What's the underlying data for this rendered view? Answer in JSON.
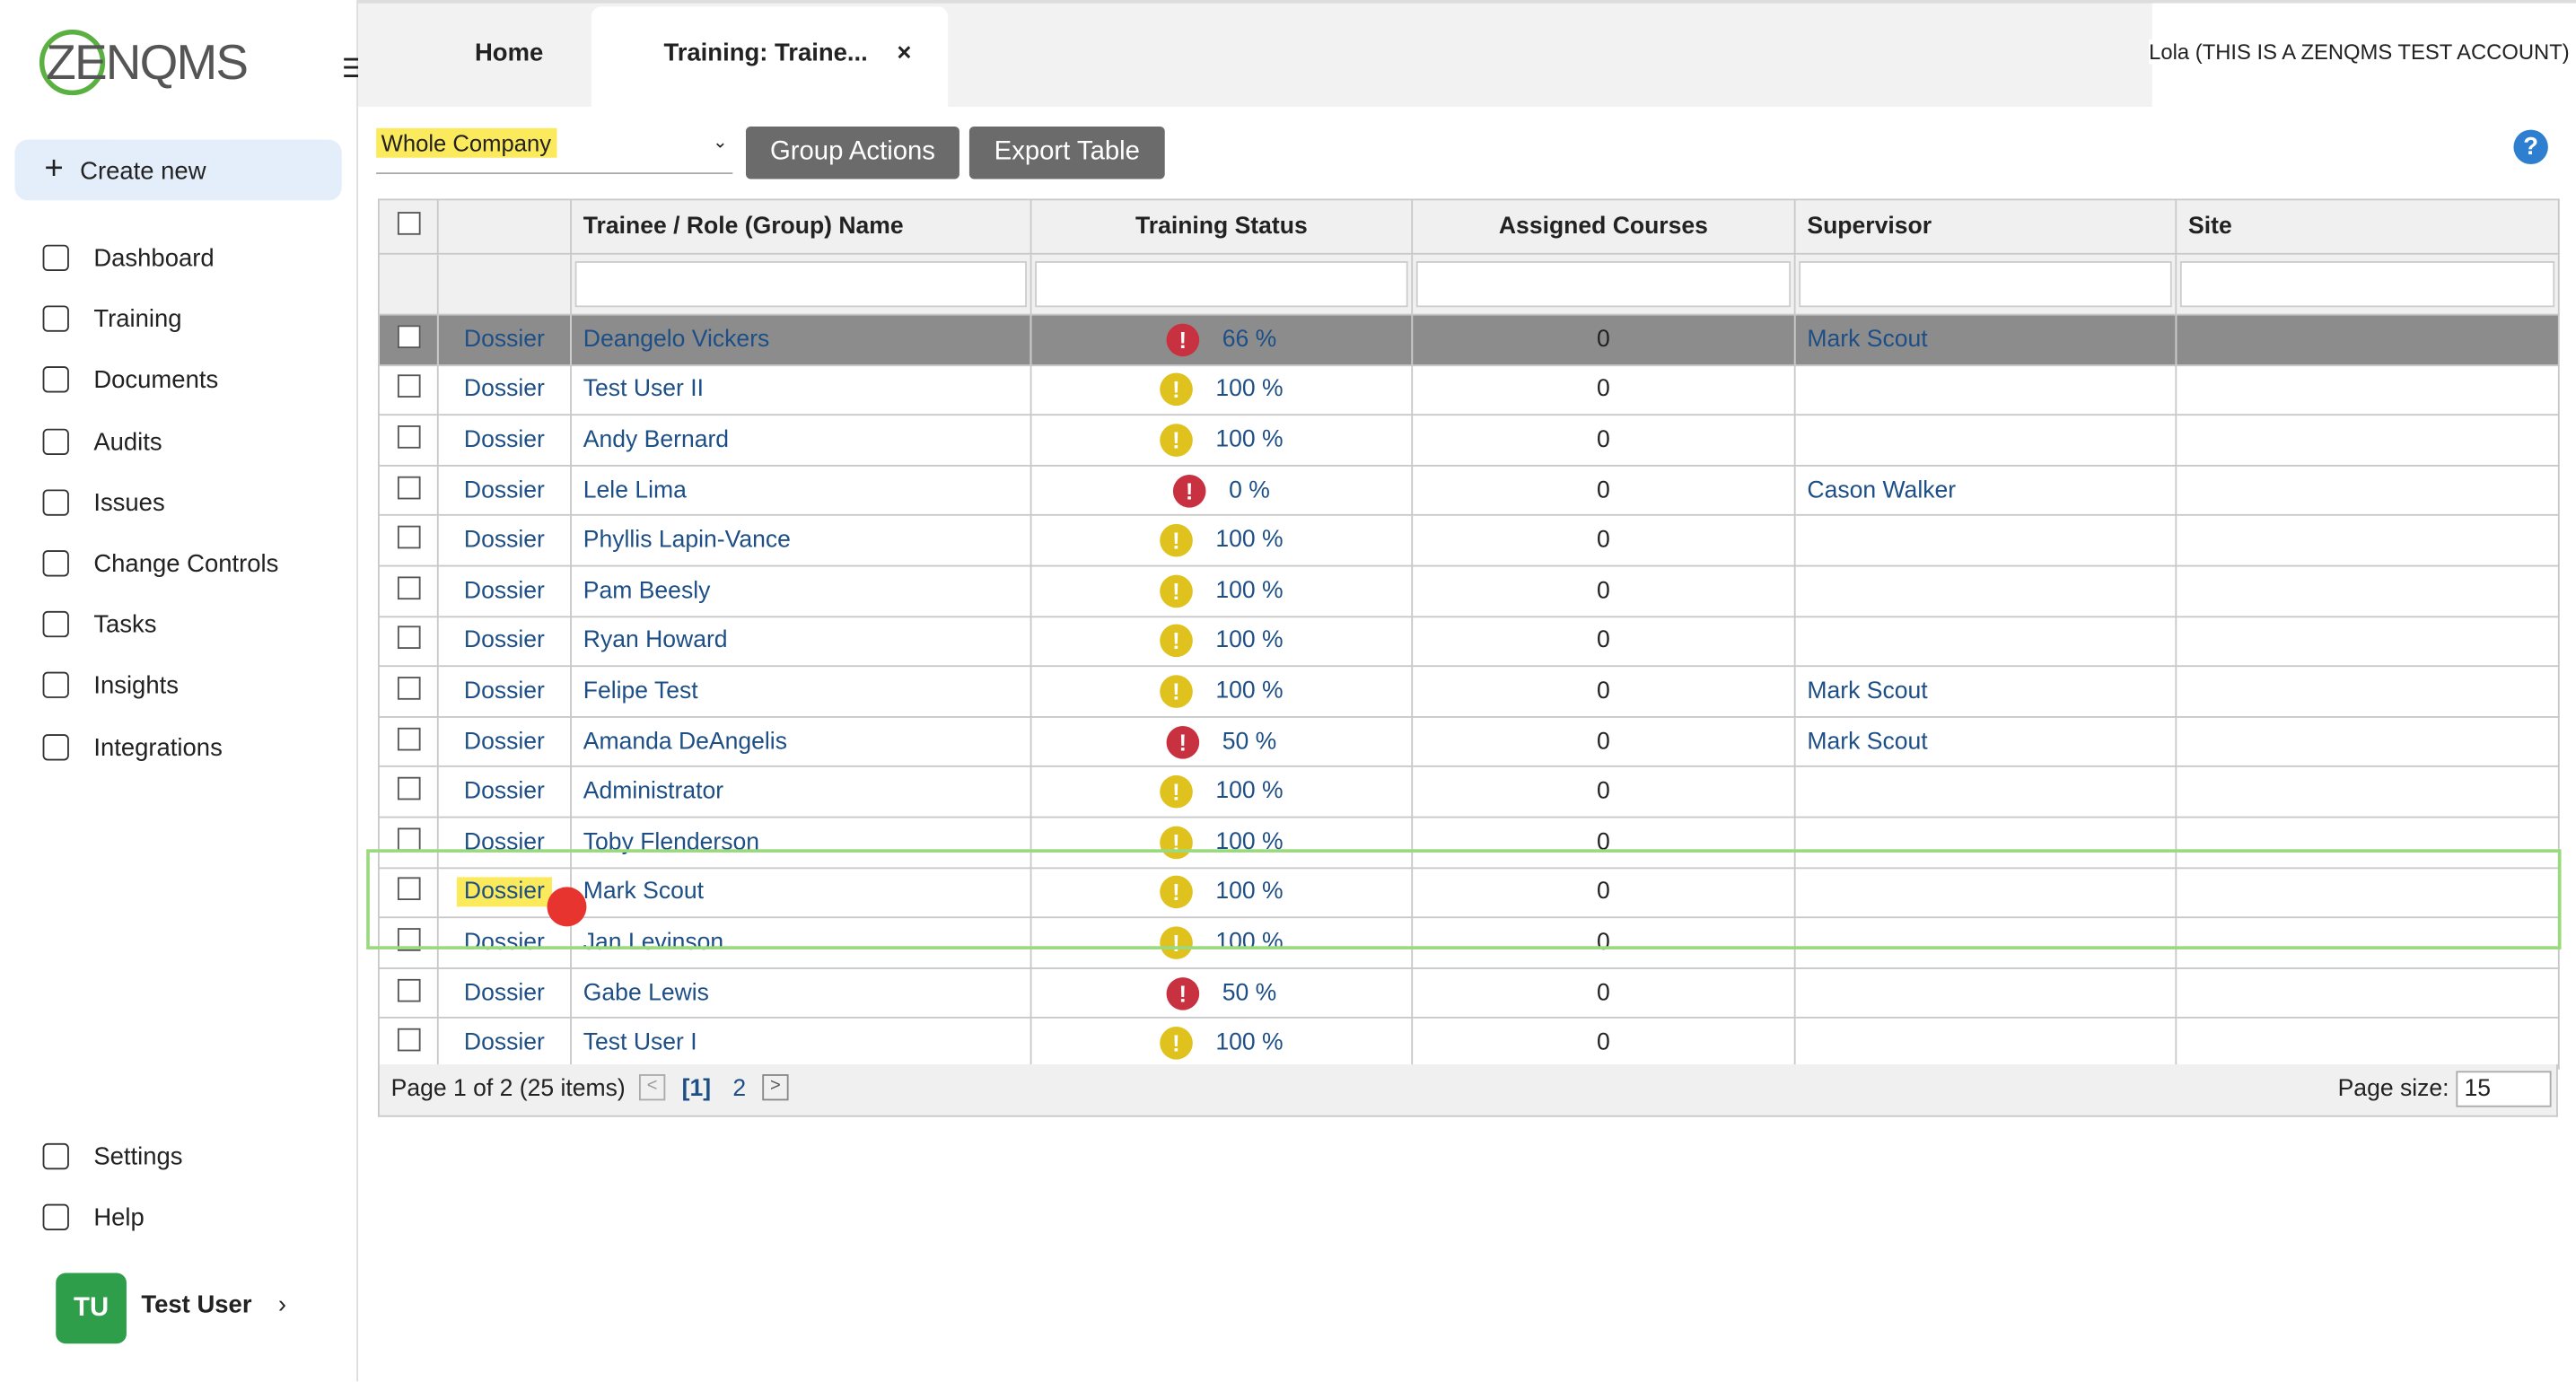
{
  "logo": "ZENQMS",
  "sidebar": {
    "create_new": "Create new",
    "nav": [
      "Dashboard",
      "Training",
      "Documents",
      "Audits",
      "Issues",
      "Change Controls",
      "Tasks",
      "Insights",
      "Integrations"
    ],
    "bottom": [
      "Settings",
      "Help"
    ],
    "user": {
      "initials": "TU",
      "name": "Test User"
    }
  },
  "tabs": [
    "Home",
    "Training: Traine..."
  ],
  "account": "Lola (THIS IS A ZENQMS TEST ACCOUNT)",
  "toolbar": {
    "filter": "Whole Company",
    "buttons": [
      "Group Actions",
      "Export Table"
    ]
  },
  "table": {
    "columns": [
      "Trainee / Role (Group) Name",
      "Training Status",
      "Assigned Courses",
      "Supervisor",
      "Site"
    ],
    "rows": [
      {
        "type": "Dossier",
        "name": "Deangelo Vickers",
        "status": "66 %",
        "icon_color": "#c8313f",
        "courses": "0",
        "supervisor": "Mark Scout"
      },
      {
        "type": "Dossier",
        "name": "Test User II",
        "status": "100 %",
        "icon_color": "#e0c21e",
        "courses": "0"
      },
      {
        "type": "Dossier",
        "name": "Andy Bernard",
        "status": "100 %",
        "icon_color": "#e0c21e",
        "courses": "0"
      },
      {
        "type": "Dossier",
        "name": "Lele Lima",
        "status": "0 %",
        "icon_color": "#c8313f",
        "courses": "0",
        "supervisor": "Cason Walker"
      },
      {
        "type": "Dossier",
        "name": "Phyllis Lapin-Vance",
        "status": "100 %",
        "icon_color": "#e0c21e",
        "courses": "0"
      },
      {
        "type": "Dossier",
        "name": "Pam Beesly",
        "status": "100 %",
        "icon_color": "#e0c21e",
        "courses": "0"
      },
      {
        "type": "Dossier",
        "name": "Ryan Howard",
        "status": "100 %",
        "icon_color": "#e0c21e",
        "courses": "0"
      },
      {
        "type": "Dossier",
        "name": "Felipe Test",
        "status": "100 %",
        "icon_color": "#e0c21e",
        "courses": "0",
        "supervisor": "Mark Scout"
      },
      {
        "type": "Dossier",
        "name": "Amanda DeAngelis",
        "status": "50 %",
        "icon_color": "#c8313f",
        "courses": "0",
        "supervisor": "Mark Scout"
      },
      {
        "type": "Dossier",
        "name": "Administrator",
        "status": "100 %",
        "icon_color": "#e0c21e",
        "courses": "0"
      },
      {
        "type": "Dossier",
        "name": "Toby Flenderson",
        "status": "100 %",
        "icon_color": "#e0c21e",
        "courses": "0"
      },
      {
        "type": "Dossier",
        "name": "Mark Scout",
        "status": "100 %",
        "icon_color": "#e0c21e",
        "courses": "0"
      },
      {
        "type": "Dossier",
        "name": "Jan Levinson",
        "status": "100 %",
        "icon_color": "#e0c21e",
        "courses": "0"
      },
      {
        "type": "Dossier",
        "name": "Gabe Lewis",
        "status": "50 %",
        "icon_color": "#c8313f",
        "courses": "0"
      },
      {
        "type": "Dossier",
        "name": "Test User I",
        "status": "100 %",
        "icon_color": "#e0c21e",
        "courses": "0"
      }
    ]
  },
  "pager": {
    "info": "Page 1 of 2 (25 items)",
    "current": "[1]",
    "next": "2",
    "size_label": "Page size:",
    "size": "15"
  }
}
